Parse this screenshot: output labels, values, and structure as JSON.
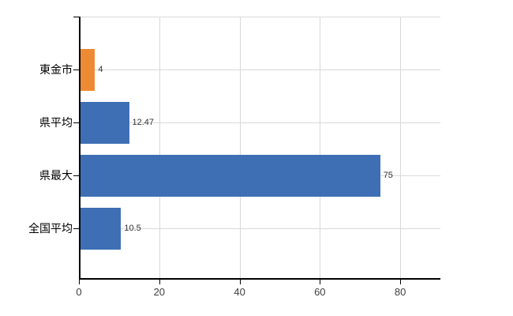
{
  "chart_data": {
    "type": "bar",
    "orientation": "horizontal",
    "title": "",
    "categories": [
      "東金市",
      "県平均",
      "県最大",
      "全国平均"
    ],
    "values": [
      4,
      12.47,
      75,
      10.5
    ],
    "value_labels": [
      "4",
      "12.47",
      "75",
      "10.5"
    ],
    "series": [
      {
        "name": "value",
        "values": [
          4,
          12.47,
          75,
          10.5
        ]
      }
    ],
    "bar_colors": [
      "#ED8A33",
      "#3E6FB5",
      "#3E6FB5",
      "#3E6FB5"
    ],
    "x_axis": {
      "min": 0,
      "max": 90,
      "tick_values": [
        0,
        20,
        40,
        60,
        80
      ],
      "tick_labels": [
        "0",
        "20",
        "40",
        "60",
        "80"
      ]
    },
    "y_axis": {
      "label": ""
    },
    "grid": true,
    "legend_position": "none",
    "colors": {
      "grid": "#D9D9D9",
      "axis": "#000000",
      "tick_label": "#404040",
      "value_label": "#333333",
      "background": "#FFFFFF",
      "accent_orange": "#ED8A33",
      "accent_blue": "#3E6FB5"
    }
  }
}
